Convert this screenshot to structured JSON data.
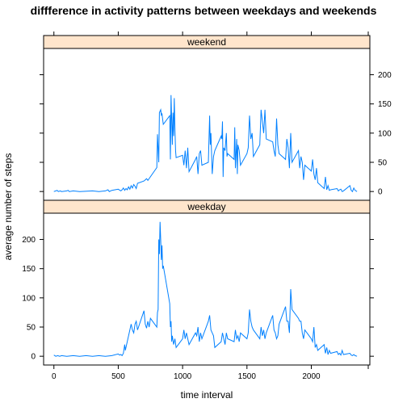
{
  "chart_data": {
    "type": "line",
    "title": "diffference in activity patterns between weekdays and weekends",
    "xlabel": "time interval",
    "ylabel": "average number of steps",
    "xlim": [
      -80,
      2455
    ],
    "ylim": [
      -15,
      245
    ],
    "x_ticks": [
      0,
      500,
      1000,
      1500,
      2000
    ],
    "y_ticks": [
      0,
      50,
      100,
      150,
      200
    ],
    "line_color": "#0080ff",
    "strip_color": "#ffe5cc",
    "panels": [
      {
        "name": "weekend",
        "y_axis_side": "right",
        "points": [
          [
            0,
            0
          ],
          [
            15,
            1
          ],
          [
            25,
            2
          ],
          [
            35,
            0
          ],
          [
            50,
            1
          ],
          [
            60,
            0
          ],
          [
            100,
            1
          ],
          [
            110,
            2
          ],
          [
            120,
            0
          ],
          [
            150,
            1
          ],
          [
            200,
            0
          ],
          [
            300,
            1
          ],
          [
            350,
            0
          ],
          [
            400,
            1
          ],
          [
            420,
            3
          ],
          [
            430,
            0
          ],
          [
            450,
            2
          ],
          [
            500,
            4
          ],
          [
            520,
            1
          ],
          [
            530,
            3
          ],
          [
            540,
            6
          ],
          [
            550,
            2
          ],
          [
            560,
            5
          ],
          [
            570,
            3
          ],
          [
            580,
            8
          ],
          [
            590,
            4
          ],
          [
            600,
            10
          ],
          [
            610,
            6
          ],
          [
            620,
            12
          ],
          [
            630,
            9
          ],
          [
            640,
            5
          ],
          [
            650,
            14
          ],
          [
            700,
            18
          ],
          [
            710,
            20
          ],
          [
            720,
            22
          ],
          [
            730,
            19
          ],
          [
            800,
            41
          ],
          [
            805,
            98
          ],
          [
            815,
            50
          ],
          [
            820,
            135
          ],
          [
            830,
            140
          ],
          [
            835,
            131
          ],
          [
            840,
            133
          ],
          [
            850,
            115
          ],
          [
            900,
            130
          ],
          [
            905,
            55
          ],
          [
            910,
            165
          ],
          [
            920,
            80
          ],
          [
            925,
            135
          ],
          [
            930,
            95
          ],
          [
            935,
            160
          ],
          [
            940,
            110
          ],
          [
            945,
            70
          ],
          [
            950,
            58
          ],
          [
            1000,
            62
          ],
          [
            1010,
            45
          ],
          [
            1020,
            70
          ],
          [
            1030,
            40
          ],
          [
            1040,
            75
          ],
          [
            1050,
            34
          ],
          [
            1100,
            55
          ],
          [
            1110,
            60
          ],
          [
            1120,
            30
          ],
          [
            1130,
            65
          ],
          [
            1140,
            70
          ],
          [
            1150,
            45
          ],
          [
            1200,
            50
          ],
          [
            1210,
            130
          ],
          [
            1215,
            80
          ],
          [
            1220,
            100
          ],
          [
            1230,
            30
          ],
          [
            1240,
            60
          ],
          [
            1250,
            70
          ],
          [
            1300,
            95
          ],
          [
            1305,
            90
          ],
          [
            1310,
            120
          ],
          [
            1315,
            25
          ],
          [
            1320,
            75
          ],
          [
            1330,
            70
          ],
          [
            1340,
            100
          ],
          [
            1345,
            60
          ],
          [
            1350,
            65
          ],
          [
            1400,
            55
          ],
          [
            1405,
            110
          ],
          [
            1410,
            40
          ],
          [
            1420,
            90
          ],
          [
            1425,
            30
          ],
          [
            1430,
            80
          ],
          [
            1440,
            70
          ],
          [
            1450,
            45
          ],
          [
            1500,
            65
          ],
          [
            1510,
            75
          ],
          [
            1520,
            130
          ],
          [
            1530,
            90
          ],
          [
            1540,
            100
          ],
          [
            1550,
            60
          ],
          [
            1600,
            80
          ],
          [
            1610,
            140
          ],
          [
            1620,
            120
          ],
          [
            1630,
            100
          ],
          [
            1640,
            140
          ],
          [
            1650,
            90
          ],
          [
            1700,
            85
          ],
          [
            1710,
            70
          ],
          [
            1720,
            60
          ],
          [
            1730,
            125
          ],
          [
            1740,
            80
          ],
          [
            1750,
            65
          ],
          [
            1800,
            55
          ],
          [
            1810,
            90
          ],
          [
            1820,
            75
          ],
          [
            1830,
            40
          ],
          [
            1840,
            100
          ],
          [
            1850,
            50
          ],
          [
            1900,
            70
          ],
          [
            1910,
            40
          ],
          [
            1920,
            60
          ],
          [
            1930,
            50
          ],
          [
            1940,
            20
          ],
          [
            1950,
            45
          ],
          [
            2000,
            35
          ],
          [
            2010,
            55
          ],
          [
            2020,
            30
          ],
          [
            2030,
            20
          ],
          [
            2040,
            40
          ],
          [
            2050,
            15
          ],
          [
            2100,
            5
          ],
          [
            2110,
            25
          ],
          [
            2120,
            3
          ],
          [
            2130,
            10
          ],
          [
            2140,
            2
          ],
          [
            2150,
            3
          ],
          [
            2200,
            5
          ],
          [
            2210,
            1
          ],
          [
            2220,
            3
          ],
          [
            2230,
            4
          ],
          [
            2240,
            0
          ],
          [
            2250,
            1
          ],
          [
            2300,
            10
          ],
          [
            2310,
            2
          ],
          [
            2320,
            0
          ],
          [
            2330,
            6
          ],
          [
            2340,
            2
          ],
          [
            2355,
            0
          ]
        ]
      },
      {
        "name": "weekday",
        "y_axis_side": "left",
        "points": [
          [
            0,
            2
          ],
          [
            15,
            0
          ],
          [
            30,
            1
          ],
          [
            45,
            0
          ],
          [
            60,
            1
          ],
          [
            100,
            0
          ],
          [
            150,
            1
          ],
          [
            200,
            0
          ],
          [
            250,
            1
          ],
          [
            300,
            0
          ],
          [
            350,
            1
          ],
          [
            400,
            0
          ],
          [
            450,
            1
          ],
          [
            500,
            4
          ],
          [
            510,
            2
          ],
          [
            520,
            3
          ],
          [
            530,
            1
          ],
          [
            540,
            5
          ],
          [
            550,
            20
          ],
          [
            555,
            10
          ],
          [
            600,
            55
          ],
          [
            610,
            45
          ],
          [
            620,
            40
          ],
          [
            630,
            55
          ],
          [
            640,
            60
          ],
          [
            650,
            45
          ],
          [
            700,
            78
          ],
          [
            710,
            55
          ],
          [
            720,
            48
          ],
          [
            730,
            60
          ],
          [
            740,
            50
          ],
          [
            750,
            65
          ],
          [
            800,
            50
          ],
          [
            805,
            75
          ],
          [
            810,
            80
          ],
          [
            815,
            200
          ],
          [
            820,
            175
          ],
          [
            825,
            230
          ],
          [
            830,
            200
          ],
          [
            835,
            165
          ],
          [
            840,
            190
          ],
          [
            845,
            150
          ],
          [
            850,
            155
          ],
          [
            900,
            90
          ],
          [
            905,
            50
          ],
          [
            910,
            60
          ],
          [
            915,
            25
          ],
          [
            920,
            35
          ],
          [
            930,
            20
          ],
          [
            940,
            30
          ],
          [
            950,
            15
          ],
          [
            1000,
            30
          ],
          [
            1010,
            45
          ],
          [
            1020,
            30
          ],
          [
            1030,
            40
          ],
          [
            1040,
            30
          ],
          [
            1050,
            20
          ],
          [
            1100,
            40
          ],
          [
            1110,
            35
          ],
          [
            1120,
            50
          ],
          [
            1130,
            25
          ],
          [
            1140,
            40
          ],
          [
            1150,
            30
          ],
          [
            1200,
            60
          ],
          [
            1210,
            70
          ],
          [
            1220,
            45
          ],
          [
            1230,
            40
          ],
          [
            1240,
            35
          ],
          [
            1250,
            15
          ],
          [
            1300,
            25
          ],
          [
            1310,
            40
          ],
          [
            1320,
            30
          ],
          [
            1330,
            20
          ],
          [
            1340,
            40
          ],
          [
            1350,
            30
          ],
          [
            1400,
            25
          ],
          [
            1410,
            45
          ],
          [
            1420,
            30
          ],
          [
            1430,
            35
          ],
          [
            1440,
            25
          ],
          [
            1450,
            40
          ],
          [
            1500,
            30
          ],
          [
            1510,
            40
          ],
          [
            1520,
            80
          ],
          [
            1530,
            60
          ],
          [
            1540,
            50
          ],
          [
            1550,
            45
          ],
          [
            1600,
            30
          ],
          [
            1610,
            50
          ],
          [
            1620,
            35
          ],
          [
            1630,
            45
          ],
          [
            1640,
            30
          ],
          [
            1650,
            40
          ],
          [
            1700,
            70
          ],
          [
            1710,
            45
          ],
          [
            1720,
            40
          ],
          [
            1730,
            30
          ],
          [
            1740,
            35
          ],
          [
            1750,
            55
          ],
          [
            1800,
            85
          ],
          [
            1810,
            60
          ],
          [
            1820,
            60
          ],
          [
            1830,
            40
          ],
          [
            1840,
            115
          ],
          [
            1850,
            80
          ],
          [
            1900,
            65
          ],
          [
            1910,
            60
          ],
          [
            1920,
            60
          ],
          [
            1930,
            40
          ],
          [
            1940,
            30
          ],
          [
            1950,
            45
          ],
          [
            2000,
            30
          ],
          [
            2010,
            25
          ],
          [
            2020,
            50
          ],
          [
            2030,
            15
          ],
          [
            2040,
            20
          ],
          [
            2050,
            10
          ],
          [
            2100,
            20
          ],
          [
            2110,
            5
          ],
          [
            2120,
            15
          ],
          [
            2130,
            3
          ],
          [
            2140,
            10
          ],
          [
            2150,
            5
          ],
          [
            2200,
            8
          ],
          [
            2210,
            3
          ],
          [
            2220,
            5
          ],
          [
            2230,
            2
          ],
          [
            2240,
            10
          ],
          [
            2250,
            3
          ],
          [
            2300,
            5
          ],
          [
            2310,
            2
          ],
          [
            2320,
            1
          ],
          [
            2330,
            3
          ],
          [
            2340,
            1
          ],
          [
            2355,
            0
          ]
        ]
      }
    ]
  }
}
